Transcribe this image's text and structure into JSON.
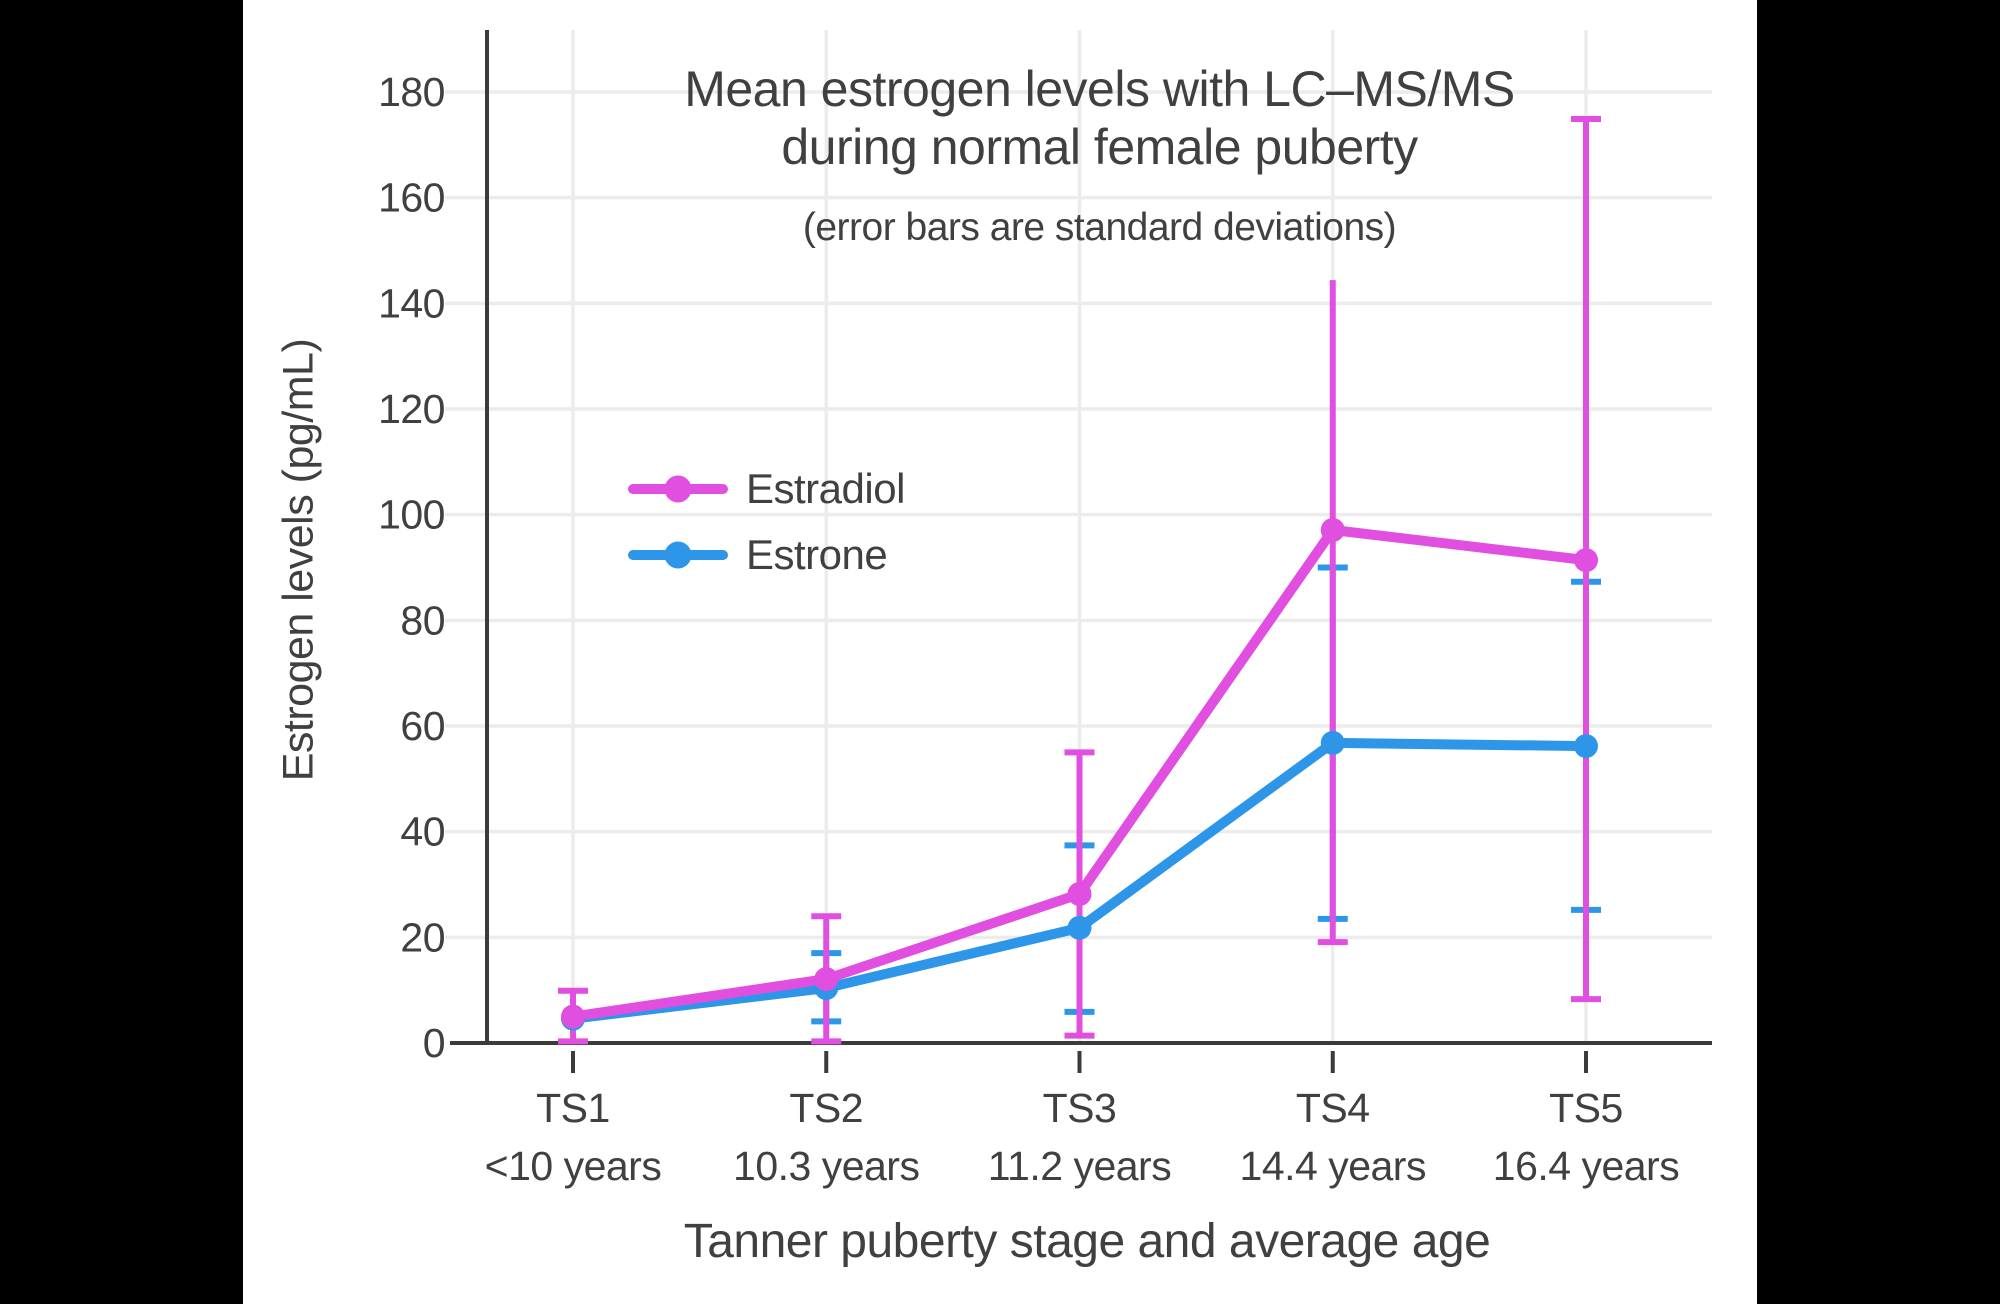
{
  "colors": {
    "background_bars": "#000000",
    "panel": "#ffffff",
    "estradiol": "#e04fe0",
    "estrone": "#2e96e8",
    "text": "#404040",
    "axis": "#3b3b3b",
    "grid": "#ececec"
  },
  "chart_data": {
    "type": "line",
    "title": "Mean estrogen levels with LC–MS/MS",
    "title_line2": "during normal female puberty",
    "subtitle": "(error bars are standard deviations)",
    "xlabel": "Tanner puberty stage and average age",
    "ylabel": "Estrogen levels (pg/mL)",
    "categories": [
      "TS1",
      "TS2",
      "TS3",
      "TS4",
      "TS5"
    ],
    "category_ages": [
      "<10 years",
      "10.3 years",
      "11.2 years",
      "14.4 years",
      "16.4 years"
    ],
    "y_ticks": [
      0,
      20,
      40,
      60,
      80,
      100,
      120,
      140,
      160,
      180
    ],
    "ylim": [
      0,
      192
    ],
    "grid": true,
    "legend_position": "inside-upper-left",
    "series": [
      {
        "name": "Estrone",
        "color": "#2e96e8",
        "values": [
          4.6,
          10.4,
          21.8,
          56.8,
          56.2
        ],
        "error_low": [
          null,
          4.1,
          5.9,
          23.5,
          25.2
        ],
        "error_high": [
          null,
          17.0,
          37.4,
          90.0,
          87.3
        ],
        "top_caps": [
          false,
          true,
          true,
          true,
          true
        ],
        "bottom_caps": [
          false,
          true,
          true,
          true,
          true
        ]
      },
      {
        "name": "Estradiol",
        "color": "#e04fe0",
        "values": [
          5.0,
          12.1,
          28.2,
          97.1,
          91.4
        ],
        "error_low": [
          0.3,
          0.3,
          1.4,
          19.1,
          8.3
        ],
        "error_high": [
          9.9,
          24.0,
          55.0,
          144.4,
          174.9
        ],
        "top_caps": [
          true,
          true,
          true,
          false,
          true
        ],
        "bottom_caps": [
          true,
          true,
          true,
          true,
          true
        ]
      }
    ]
  }
}
